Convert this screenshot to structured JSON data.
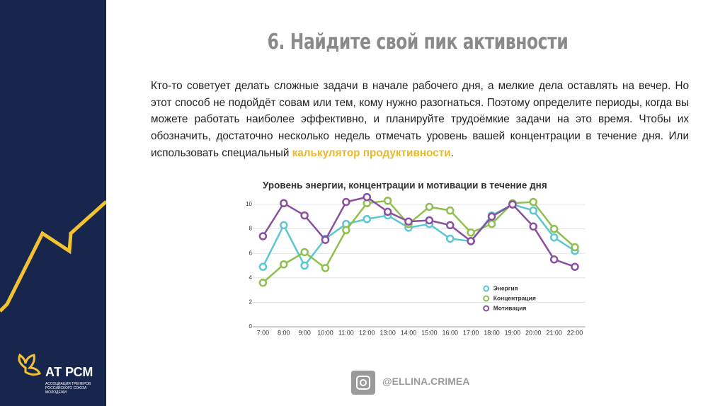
{
  "slide": {
    "title": "6. Найдите свой пик активности",
    "paragraph": {
      "before": "Кто-то советует делать сложные задачи в начале рабочего дня, а мелкие дела оставлять на вечер. Но этот способ не подойдёт совам или тем, кому нужно разогнаться. Поэтому определите периоды, когда вы можете работать наиболее эффективно, и планируйте трудоёмкие задачи на это время. Чтобы их обозначить, достаточно несколько недель отмечать уровень вашей концентрации в течение дня. Или использовать специальный",
      "link": "калькулятор продуктивности",
      "after": "."
    },
    "logo": {
      "name": "АТ РСМ",
      "subtitle": "АССОЦИАЦИЯ ТРЕНЕРОВ РОССИЙСКОГО СОЮЗА МОЛОДЕЖИ"
    },
    "handle": "@ELLINA.CRIMEA"
  },
  "chart_data": {
    "type": "line",
    "title": "Уровень энергии, концентрации и мотивации в течение дня",
    "categories": [
      "7:00",
      "8:00",
      "9:00",
      "10:00",
      "11:00",
      "12:00",
      "13:00",
      "14:00",
      "15:00",
      "16:00",
      "17:00",
      "18:00",
      "19:00",
      "20:00",
      "21:00",
      "22:00"
    ],
    "series": [
      {
        "name": "Энергия",
        "color": "#5cc6d3",
        "values": [
          4.9,
          8.3,
          5.0,
          7.2,
          8.4,
          8.8,
          9.1,
          8.1,
          8.4,
          7.2,
          7.0,
          9.1,
          10.0,
          9.5,
          7.3,
          6.2
        ]
      },
      {
        "name": "Концентрация",
        "color": "#8fbf4f",
        "values": [
          3.6,
          5.1,
          6.1,
          4.8,
          7.9,
          10.1,
          10.3,
          8.4,
          9.8,
          9.5,
          7.7,
          8.4,
          10.1,
          10.2,
          8.0,
          6.5
        ]
      },
      {
        "name": "Мотивация",
        "color": "#8b4f9f",
        "values": [
          7.4,
          10.1,
          9.1,
          7.1,
          10.2,
          10.6,
          9.4,
          8.6,
          8.7,
          8.3,
          7.0,
          9.0,
          10.0,
          8.2,
          5.5,
          4.9
        ]
      }
    ],
    "ylim": [
      0,
      11
    ],
    "yticks": [
      0,
      2,
      4,
      6,
      8,
      10
    ],
    "grid": true,
    "legend": "lower right"
  }
}
